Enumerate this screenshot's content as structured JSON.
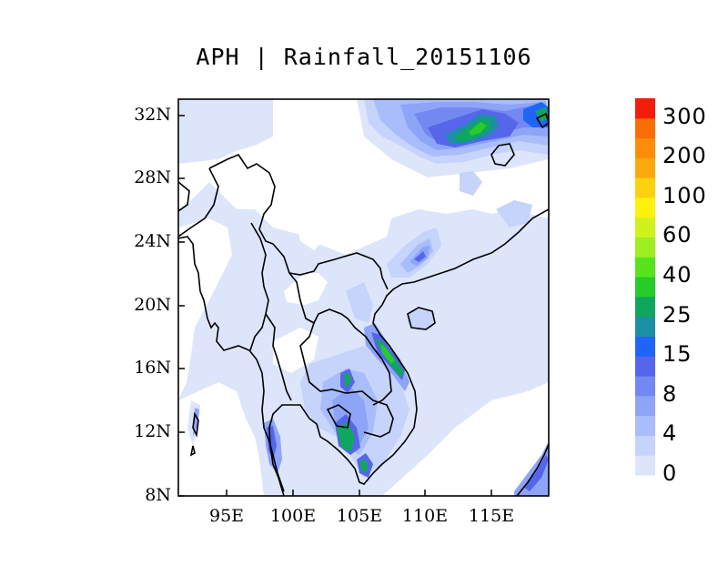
{
  "title": "APH | Rainfall_20151106",
  "map": {
    "lat_ticks": [
      "32N",
      "28N",
      "24N",
      "20N",
      "16N",
      "12N",
      "8N"
    ],
    "lon_ticks": [
      "95E",
      "100E",
      "105E",
      "110E",
      "115E"
    ]
  },
  "colorbar": {
    "labels": [
      "300",
      "200",
      "100",
      "60",
      "40",
      "25",
      "15",
      "8",
      "4",
      "0"
    ],
    "colors": [
      "#dde5fb",
      "#c6d3fb",
      "#a9bdfa",
      "#8ea4f7",
      "#7488f2",
      "#5566ea",
      "#1f66f7",
      "#1b8fa3",
      "#10a65e",
      "#25cc2a",
      "#58e31c",
      "#9eee22",
      "#cff21c",
      "#fdf20e",
      "#fdd10e",
      "#fca90e",
      "#fb8d0b",
      "#fa6e08",
      "#f21d0a"
    ]
  }
}
